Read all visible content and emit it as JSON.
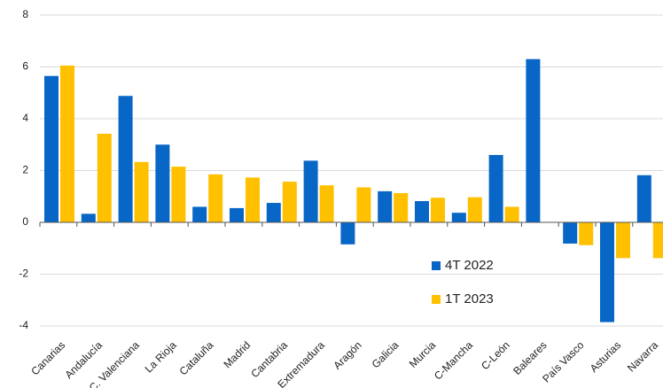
{
  "chart_data": {
    "type": "bar",
    "categories": [
      "Canarias",
      "Andalucía",
      "C. Valenciana",
      "La Rioja",
      "Cataluña",
      "Madrid",
      "Cantabria",
      "Extremadura",
      "Aragón",
      "Galicia",
      "Murcia",
      "C-Mancha",
      "C-León",
      "Baleares",
      "País Vasco",
      "Asturias",
      "Navarra"
    ],
    "series": [
      {
        "name": "4T 2022",
        "color": "#0866c6",
        "values": [
          5.65,
          0.33,
          4.88,
          3.0,
          0.6,
          0.55,
          0.75,
          2.38,
          -0.85,
          1.2,
          0.82,
          0.37,
          2.6,
          6.3,
          -0.82,
          -3.85,
          1.82
        ]
      },
      {
        "name": "1T 2023",
        "color": "#ffc000",
        "values": [
          6.05,
          3.42,
          2.33,
          2.15,
          1.85,
          1.73,
          1.57,
          1.43,
          1.35,
          1.13,
          0.95,
          0.97,
          0.6,
          null,
          -0.88,
          -1.38,
          -1.38
        ]
      }
    ],
    "ylim": [
      -4,
      8
    ],
    "yticks": [
      -4,
      -2,
      0,
      2,
      4,
      6,
      8
    ],
    "grid": true
  }
}
